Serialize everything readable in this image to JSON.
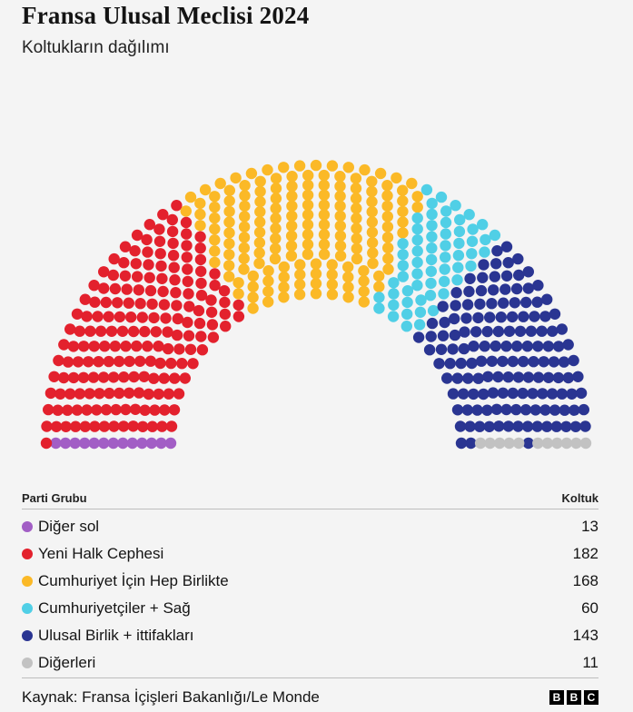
{
  "title": "Fransa Ulusal Meclisi 2024",
  "subtitle": "Koltukların dağılımı",
  "table": {
    "col_party": "Parti Grubu",
    "col_seats": "Koltuk"
  },
  "chart_data": {
    "type": "hemicycle",
    "title": "Fransa Ulusal Meclisi 2024",
    "subtitle": "Koltukların dağılımı",
    "total_seats": 577,
    "parties": [
      {
        "name": "Diğer sol",
        "seats": 13,
        "color": "#a25ec5"
      },
      {
        "name": "Yeni Halk Cephesi",
        "seats": 182,
        "color": "#e3212d"
      },
      {
        "name": "Cumhuriyet İçin Hep Birlikte",
        "seats": 168,
        "color": "#fbb927"
      },
      {
        "name": "Cumhuriyetçiler + Sağ",
        "seats": 60,
        "color": "#50cfe6"
      },
      {
        "name": "Ulusal Birlik + ittifakları",
        "seats": 143,
        "color": "#2a3592"
      },
      {
        "name": "Diğerleri",
        "seats": 11,
        "color": "#c2c2c2"
      }
    ]
  },
  "footer": {
    "source": "Kaynak: Fransa İçişleri Bakanlığı/Le Monde",
    "logo_letters": [
      "B",
      "B",
      "C"
    ]
  }
}
